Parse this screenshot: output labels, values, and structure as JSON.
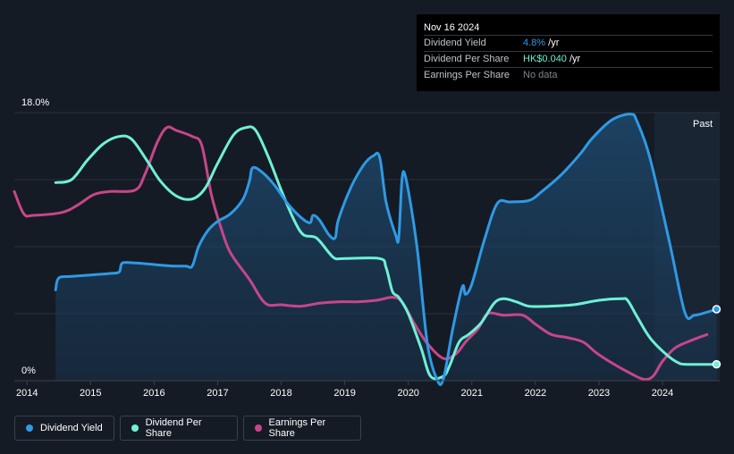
{
  "chart_data": {
    "type": "line",
    "title": "",
    "y_top_label": "18.0%",
    "y_bottom_label": "0%",
    "ylim": [
      0,
      18
    ],
    "xlim": [
      2013.8,
      2024.9
    ],
    "x_ticks": [
      "2014",
      "2015",
      "2016",
      "2017",
      "2018",
      "2019",
      "2020",
      "2021",
      "2022",
      "2023",
      "2024"
    ],
    "past_label": "Past",
    "forecast_start": 2023.87,
    "series": [
      {
        "name": "Dividend Yield",
        "color": "#2e9ae5",
        "filled": true,
        "points": [
          [
            2014.45,
            6.1
          ],
          [
            2014.5,
            6.9
          ],
          [
            2014.7,
            7.0
          ],
          [
            2015.0,
            7.1
          ],
          [
            2015.3,
            7.2
          ],
          [
            2015.45,
            7.3
          ],
          [
            2015.5,
            7.9
          ],
          [
            2015.7,
            7.9
          ],
          [
            2016.0,
            7.8
          ],
          [
            2016.3,
            7.7
          ],
          [
            2016.5,
            7.7
          ],
          [
            2016.6,
            7.7
          ],
          [
            2016.7,
            9.0
          ],
          [
            2016.85,
            10.1
          ],
          [
            2017.0,
            10.7
          ],
          [
            2017.2,
            11.2
          ],
          [
            2017.4,
            12.2
          ],
          [
            2017.5,
            13.4
          ],
          [
            2017.55,
            14.3
          ],
          [
            2017.7,
            14.0
          ],
          [
            2017.9,
            13.1
          ],
          [
            2018.1,
            11.9
          ],
          [
            2018.3,
            11.0
          ],
          [
            2018.45,
            10.6
          ],
          [
            2018.5,
            11.1
          ],
          [
            2018.6,
            10.8
          ],
          [
            2018.75,
            9.8
          ],
          [
            2018.85,
            9.6
          ],
          [
            2018.9,
            10.8
          ],
          [
            2019.1,
            13.0
          ],
          [
            2019.3,
            14.5
          ],
          [
            2019.45,
            15.1
          ],
          [
            2019.55,
            15.0
          ],
          [
            2019.65,
            12.0
          ],
          [
            2019.8,
            9.8
          ],
          [
            2019.85,
            9.6
          ],
          [
            2019.9,
            13.5
          ],
          [
            2019.95,
            13.8
          ],
          [
            2020.05,
            11.5
          ],
          [
            2020.15,
            8.5
          ],
          [
            2020.3,
            2.5
          ],
          [
            2020.45,
            0.1
          ],
          [
            2020.55,
            0.1
          ],
          [
            2020.7,
            3.5
          ],
          [
            2020.85,
            6.3
          ],
          [
            2020.9,
            5.8
          ],
          [
            2021.0,
            6.5
          ],
          [
            2021.2,
            9.5
          ],
          [
            2021.4,
            11.9
          ],
          [
            2021.6,
            12.0
          ],
          [
            2021.9,
            12.1
          ],
          [
            2022.1,
            12.7
          ],
          [
            2022.4,
            13.8
          ],
          [
            2022.7,
            15.2
          ],
          [
            2022.9,
            16.3
          ],
          [
            2023.2,
            17.5
          ],
          [
            2023.5,
            17.9
          ],
          [
            2023.6,
            17.4
          ],
          [
            2023.8,
            15.0
          ],
          [
            2024.1,
            9.5
          ],
          [
            2024.35,
            4.6
          ],
          [
            2024.5,
            4.4
          ],
          [
            2024.7,
            4.6
          ],
          [
            2024.85,
            4.8
          ]
        ]
      },
      {
        "name": "Dividend Per Share",
        "color": "#6ff0d6",
        "filled": false,
        "points": [
          [
            2014.45,
            13.3
          ],
          [
            2014.7,
            13.5
          ],
          [
            2014.95,
            14.8
          ],
          [
            2015.2,
            15.9
          ],
          [
            2015.45,
            16.4
          ],
          [
            2015.65,
            16.2
          ],
          [
            2015.9,
            14.7
          ],
          [
            2016.1,
            13.4
          ],
          [
            2016.35,
            12.4
          ],
          [
            2016.6,
            12.2
          ],
          [
            2016.8,
            12.9
          ],
          [
            2017.0,
            14.6
          ],
          [
            2017.25,
            16.5
          ],
          [
            2017.45,
            17.0
          ],
          [
            2017.6,
            16.8
          ],
          [
            2017.8,
            15.0
          ],
          [
            2018.0,
            12.8
          ],
          [
            2018.2,
            10.8
          ],
          [
            2018.35,
            9.8
          ],
          [
            2018.55,
            9.6
          ],
          [
            2018.75,
            8.6
          ],
          [
            2018.85,
            8.2
          ],
          [
            2019.0,
            8.2
          ],
          [
            2019.55,
            8.2
          ],
          [
            2019.65,
            7.6
          ],
          [
            2019.75,
            6.0
          ],
          [
            2019.85,
            5.6
          ],
          [
            2020.0,
            4.5
          ],
          [
            2020.2,
            2.2
          ],
          [
            2020.35,
            0.3
          ],
          [
            2020.55,
            0.3
          ],
          [
            2020.65,
            1.0
          ],
          [
            2020.8,
            2.6
          ],
          [
            2020.95,
            3.1
          ],
          [
            2021.15,
            3.9
          ],
          [
            2021.35,
            5.2
          ],
          [
            2021.5,
            5.5
          ],
          [
            2021.7,
            5.3
          ],
          [
            2021.9,
            5.0
          ],
          [
            2022.2,
            5.0
          ],
          [
            2022.6,
            5.1
          ],
          [
            2023.0,
            5.4
          ],
          [
            2023.35,
            5.5
          ],
          [
            2023.45,
            5.4
          ],
          [
            2023.6,
            4.3
          ],
          [
            2023.8,
            2.9
          ],
          [
            2024.05,
            1.8
          ],
          [
            2024.25,
            1.2
          ],
          [
            2024.4,
            1.1
          ],
          [
            2024.85,
            1.1
          ]
        ]
      },
      {
        "name": "Earnings Per Share",
        "color": "#c7468a",
        "filled": false,
        "points": [
          [
            2013.8,
            12.7
          ],
          [
            2013.95,
            11.2
          ],
          [
            2014.1,
            11.1
          ],
          [
            2014.55,
            11.3
          ],
          [
            2014.8,
            11.8
          ],
          [
            2015.05,
            12.5
          ],
          [
            2015.3,
            12.7
          ],
          [
            2015.7,
            12.8
          ],
          [
            2015.85,
            13.8
          ],
          [
            2016.05,
            16.0
          ],
          [
            2016.2,
            17.0
          ],
          [
            2016.35,
            16.8
          ],
          [
            2016.6,
            16.4
          ],
          [
            2016.75,
            15.8
          ],
          [
            2016.9,
            12.5
          ],
          [
            2017.05,
            10.3
          ],
          [
            2017.2,
            8.6
          ],
          [
            2017.5,
            6.8
          ],
          [
            2017.75,
            5.2
          ],
          [
            2018.0,
            5.1
          ],
          [
            2018.3,
            5.0
          ],
          [
            2018.6,
            5.2
          ],
          [
            2018.9,
            5.3
          ],
          [
            2019.2,
            5.3
          ],
          [
            2019.5,
            5.4
          ],
          [
            2019.75,
            5.6
          ],
          [
            2019.9,
            5.3
          ],
          [
            2020.1,
            3.8
          ],
          [
            2020.3,
            2.5
          ],
          [
            2020.55,
            1.5
          ],
          [
            2020.75,
            1.8
          ],
          [
            2020.9,
            2.6
          ],
          [
            2021.1,
            3.5
          ],
          [
            2021.25,
            4.5
          ],
          [
            2021.5,
            4.4
          ],
          [
            2021.8,
            4.4
          ],
          [
            2022.0,
            3.8
          ],
          [
            2022.25,
            3.1
          ],
          [
            2022.5,
            2.9
          ],
          [
            2022.75,
            2.6
          ],
          [
            2022.95,
            1.9
          ],
          [
            2023.2,
            1.2
          ],
          [
            2023.45,
            0.6
          ],
          [
            2023.7,
            0.1
          ],
          [
            2023.85,
            0.3
          ],
          [
            2024.0,
            1.3
          ],
          [
            2024.2,
            2.2
          ],
          [
            2024.45,
            2.7
          ],
          [
            2024.7,
            3.1
          ]
        ]
      }
    ],
    "end_markers": [
      {
        "series": "Dividend Yield",
        "x": 2024.85,
        "y": 4.8
      },
      {
        "series": "Dividend Per Share",
        "x": 2024.85,
        "y": 1.1
      }
    ]
  },
  "tooltip": {
    "date": "Nov 16 2024",
    "rows": [
      {
        "key": "Dividend Yield",
        "value": "4.8%",
        "suffix": " /yr"
      },
      {
        "key": "Dividend Per Share",
        "value": "HK$0.040",
        "suffix": " /yr"
      },
      {
        "key": "Earnings Per Share",
        "value": "No data",
        "suffix": ""
      }
    ]
  },
  "legend": [
    {
      "label": "Dividend Yield",
      "color": "#2e9ae5"
    },
    {
      "label": "Dividend Per Share",
      "color": "#6ff0d6"
    },
    {
      "label": "Earnings Per Share",
      "color": "#c7468a"
    }
  ]
}
